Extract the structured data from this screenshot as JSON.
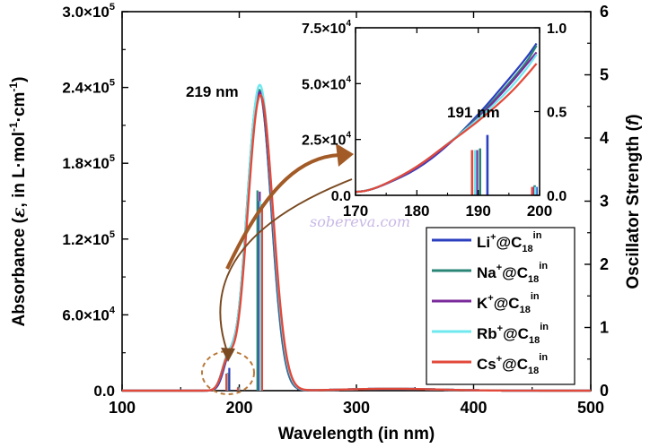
{
  "chart_data": [
    {
      "type": "line",
      "xlabel": "Wavelength (in nm)",
      "ylabel": "Absorbance (ε, in L·mol⁻¹·cm⁻¹)",
      "ylabel_parts": [
        "Absorbance (",
        "ε",
        ", in L·mol",
        "-1",
        "·cm",
        "-1",
        ")"
      ],
      "y2label": "Oscillator Strength (f)",
      "y2label_parts": [
        "Oscillator Strength (",
        "f",
        ")"
      ],
      "xlim": [
        100,
        500
      ],
      "ylim": [
        0,
        300000
      ],
      "y2lim": [
        0,
        6
      ],
      "x_ticks": [
        "100",
        "200",
        "300",
        "400",
        "500"
      ],
      "y_ticks": [
        "0.0",
        "6.0×10⁴",
        "1.2×10⁵",
        "1.8×10⁵",
        "2.4×10⁵",
        "3.0×10⁵"
      ],
      "y_tick_parts": [
        [
          "0.0",
          ""
        ],
        [
          "6.0×10",
          "4"
        ],
        [
          "1.2×10",
          "5"
        ],
        [
          "1.8×10",
          "5"
        ],
        [
          "2.4×10",
          "5"
        ],
        [
          "3.0×10",
          "5"
        ]
      ],
      "y2_ticks": [
        "0",
        "1",
        "2",
        "3",
        "4",
        "5",
        "6"
      ],
      "grid": false,
      "legend_position": "bottom-right",
      "annotations": [
        {
          "text": "219 nm",
          "x": 219
        }
      ],
      "series": [
        {
          "name": "Li⁺@C₁₈ⁱⁿ",
          "name_parts": [
            "Li",
            "+",
            "@C",
            "18",
            "in"
          ],
          "color": "#2b3fbf",
          "peak_x": 217,
          "peak_y": 237000,
          "sigma": 10.4,
          "shoulder": {
            "x": 191,
            "y": 20000,
            "sigma": 5
          },
          "sticks": [
            {
              "x": 191.5,
              "f": 0.36
            },
            {
              "x": 199.5,
              "f": 0.05
            },
            {
              "x": 216.5,
              "f": 3.0
            }
          ]
        },
        {
          "name": "Na⁺@C₁₈ⁱⁿ",
          "name_parts": [
            "Na",
            "+",
            "@C",
            "18",
            "in"
          ],
          "color": "#2a8577",
          "peak_x": 217,
          "peak_y": 238000,
          "sigma": 10.5,
          "shoulder": {
            "x": 190,
            "y": 21000,
            "sigma": 5
          },
          "sticks": [
            {
              "x": 190.3,
              "f": 0.28
            },
            {
              "x": 199.2,
              "f": 0.06
            },
            {
              "x": 215.5,
              "f": 3.17
            }
          ]
        },
        {
          "name": "K⁺@C₁₈ⁱⁿ",
          "name_parts": [
            "K",
            "+",
            "@C",
            "18",
            "in"
          ],
          "color": "#7a2a9a",
          "peak_x": 217.5,
          "peak_y": 236000,
          "sigma": 10.6,
          "shoulder": {
            "x": 190,
            "y": 21000,
            "sigma": 5
          },
          "sticks": [
            {
              "x": 189.8,
              "f": 0.27
            },
            {
              "x": 199.0,
              "f": 0.05
            },
            {
              "x": 217.5,
              "f": 3.15
            }
          ]
        },
        {
          "name": "Rb⁺@C₁₈ⁱⁿ",
          "name_parts": [
            "Rb",
            "+",
            "@C",
            "18",
            "in"
          ],
          "color": "#6fe8ef",
          "peak_x": 217.5,
          "peak_y": 242000,
          "sigma": 10.7,
          "shoulder": {
            "x": 190,
            "y": 21000,
            "sigma": 5
          },
          "sticks": [
            {
              "x": 189.5,
              "f": 0.27
            },
            {
              "x": 199.3,
              "f": 0.05
            },
            {
              "x": 218.0,
              "f": 3.0
            }
          ]
        },
        {
          "name": "Cs⁺@C₁₈ⁱⁿ",
          "name_parts": [
            "Cs",
            "+",
            "@C",
            "18",
            "in"
          ],
          "color": "#e2493a",
          "peak_x": 218,
          "peak_y": 234000,
          "sigma": 10.8,
          "shoulder": {
            "x": 190,
            "y": 20000,
            "sigma": 5
          },
          "sticks": [
            {
              "x": 189.0,
              "f": 0.27
            },
            {
              "x": 198.8,
              "f": 0.05
            },
            {
              "x": 219.5,
              "f": 2.95
            }
          ]
        }
      ]
    },
    {
      "type": "line",
      "role": "inset",
      "xlim": [
        170,
        200
      ],
      "ylim": [
        0,
        75000
      ],
      "y2lim": [
        0,
        1.0
      ],
      "x_ticks": [
        "170",
        "180",
        "190",
        "200"
      ],
      "y_ticks": [
        "0.0",
        "2.5×10⁴",
        "5.0×10⁴",
        "7.5×10⁴"
      ],
      "y_tick_parts": [
        [
          "0.0",
          ""
        ],
        [
          "2.5×10",
          "4"
        ],
        [
          "5.0×10",
          "4"
        ],
        [
          "7.5×10",
          "4"
        ]
      ],
      "y2_ticks": [
        "0.0",
        "0.5",
        "1.0"
      ],
      "annotations": [
        {
          "text": "191 nm",
          "x": 191
        }
      ],
      "series": [
        {
          "color": "#2b3fbf",
          "points": [
            [
              170,
              1500
            ],
            [
              172,
              2100
            ],
            [
              175,
              5000
            ],
            [
              180,
              11500
            ],
            [
              185,
              22000
            ],
            [
              190,
              36000
            ],
            [
              195,
              52000
            ],
            [
              198,
              62000
            ],
            [
              199.5,
              68000
            ]
          ]
        },
        {
          "color": "#2a8577",
          "points": [
            [
              170,
              1500
            ],
            [
              172,
              2100
            ],
            [
              175,
              5000
            ],
            [
              180,
              12000
            ],
            [
              185,
              22500
            ],
            [
              190,
              35000
            ],
            [
              195,
              50000
            ],
            [
              198,
              60000
            ],
            [
              199.5,
              67000
            ]
          ]
        },
        {
          "color": "#7a2a9a",
          "points": [
            [
              170,
              1500
            ],
            [
              172,
              2100
            ],
            [
              175,
              5000
            ],
            [
              180,
              12000
            ],
            [
              185,
              22500
            ],
            [
              190,
              34500
            ],
            [
              195,
              49000
            ],
            [
              198,
              59000
            ],
            [
              199.5,
              64000
            ]
          ]
        },
        {
          "color": "#6fe8ef",
          "points": [
            [
              170,
              1500
            ],
            [
              172,
              2100
            ],
            [
              175,
              5200
            ],
            [
              180,
              12500
            ],
            [
              185,
              23000
            ],
            [
              190,
              34000
            ],
            [
              195,
              47000
            ],
            [
              198,
              57000
            ],
            [
              199.5,
              63000
            ]
          ]
        },
        {
          "color": "#e2493a",
          "points": [
            [
              170,
              1500
            ],
            [
              172,
              2000
            ],
            [
              175,
              5200
            ],
            [
              180,
              12500
            ],
            [
              185,
              23000
            ],
            [
              190,
              33000
            ],
            [
              195,
              45000
            ],
            [
              198,
              54000
            ],
            [
              199.5,
              59000
            ]
          ]
        }
      ]
    }
  ],
  "watermark": "sobereva.com",
  "colors": {
    "arrow": "#a25a26",
    "circle": "#b87a3c"
  }
}
